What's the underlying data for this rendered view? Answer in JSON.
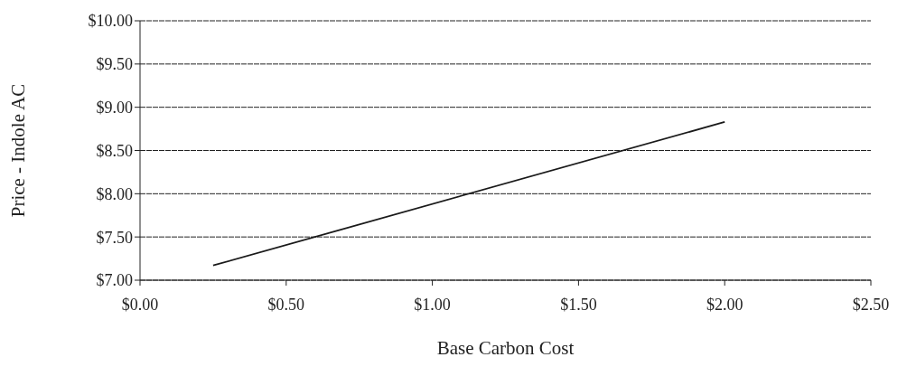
{
  "chart_data": {
    "type": "line",
    "xlabel": "Base Carbon Cost",
    "ylabel": "Price - Indole AC",
    "x": [
      0.25,
      2.0
    ],
    "series": [
      {
        "color": "#1a1a1a",
        "values": [
          7.17,
          8.83
        ]
      }
    ],
    "xlim": [
      0,
      2.5
    ],
    "xticks": [
      {
        "value": 0,
        "label": "$0.00"
      },
      {
        "value": 0.5,
        "label": "$0.50"
      },
      {
        "value": 1,
        "label": "$1.00"
      },
      {
        "value": 1.5,
        "label": "$1.50"
      },
      {
        "value": 2,
        "label": "$2.00"
      },
      {
        "value": 2.5,
        "label": "$2.50"
      }
    ],
    "ylim": [
      7,
      10
    ],
    "yticks": [
      {
        "value": 7,
        "label": "$7.00"
      },
      {
        "value": 7.5,
        "label": "$7.50"
      },
      {
        "value": 8,
        "label": "$8.00"
      },
      {
        "value": 8.5,
        "label": "$8.50"
      },
      {
        "value": 9,
        "label": "$9.00"
      },
      {
        "value": 9.5,
        "label": "$9.50"
      },
      {
        "value": 10,
        "label": "$10.00"
      }
    ],
    "grid": "y",
    "marker": "none",
    "line_style": "solid"
  }
}
